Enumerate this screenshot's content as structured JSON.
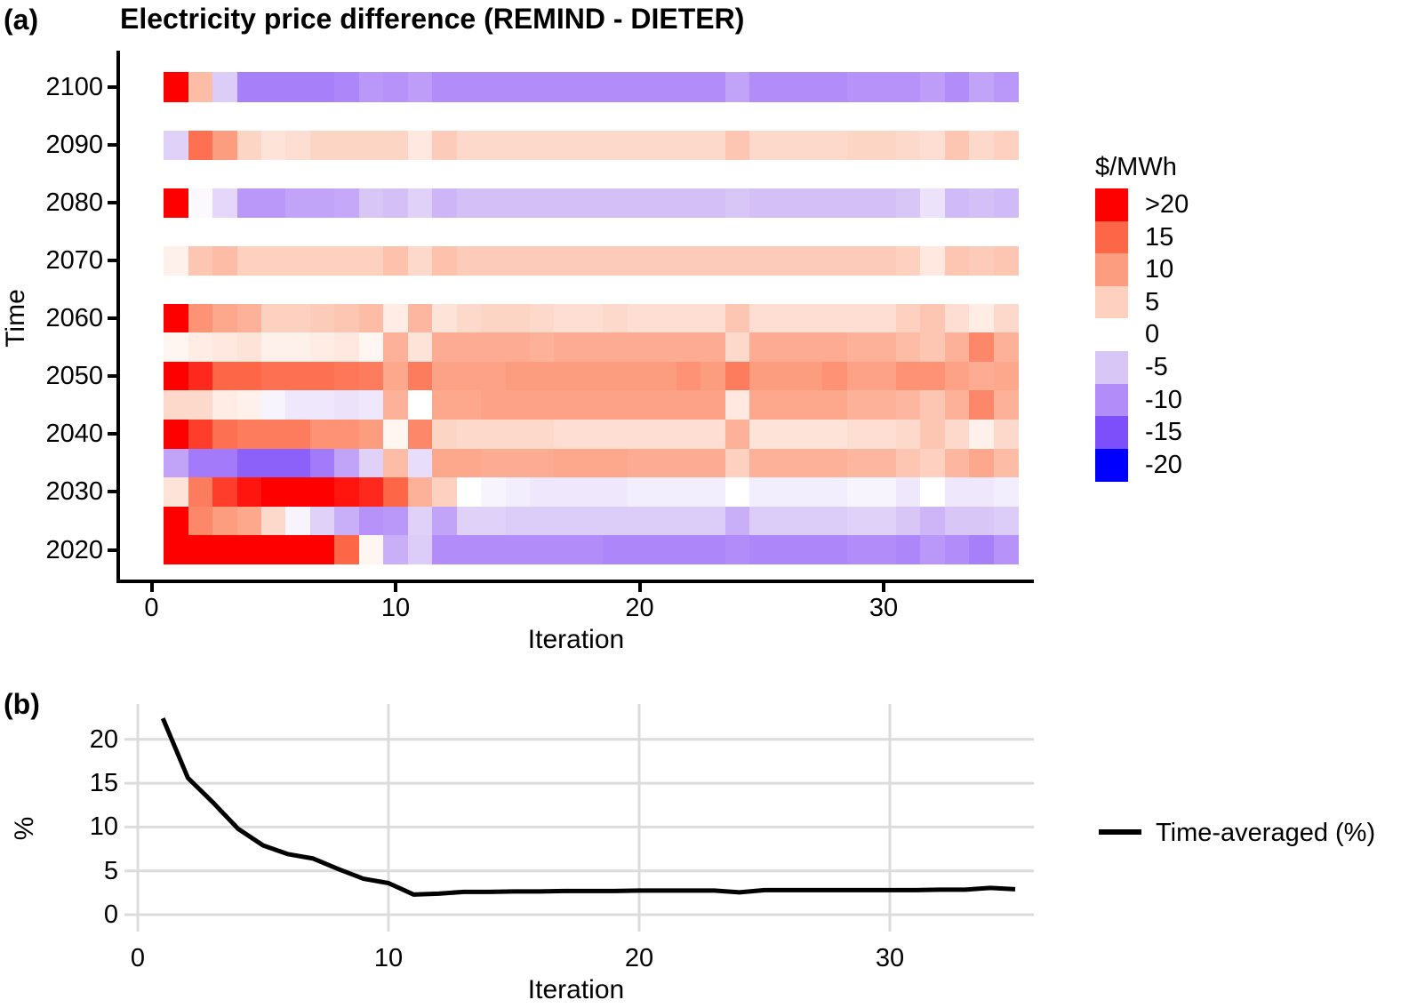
{
  "figure": {
    "panel_a_label": "(a)",
    "panel_b_label": "(b)"
  },
  "chart_data": [
    {
      "type": "heatmap",
      "title": "Electricity price difference (REMIND - DIETER)",
      "xlabel": "Iteration",
      "ylabel": "Time",
      "x_ticks": [
        0,
        10,
        20,
        30
      ],
      "y_ticks": [
        2020,
        2030,
        2040,
        2050,
        2060,
        2070,
        2080,
        2090,
        2100
      ],
      "xlim": [
        0,
        36
      ],
      "ylim": [
        2017.5,
        2102.5
      ],
      "iterations": [
        1,
        2,
        3,
        4,
        5,
        6,
        7,
        8,
        9,
        10,
        11,
        12,
        13,
        14,
        15,
        16,
        17,
        18,
        19,
        20,
        21,
        22,
        23,
        24,
        25,
        26,
        27,
        28,
        29,
        30,
        31,
        32,
        33,
        34,
        35
      ],
      "unit": "$/MWh",
      "grid": false,
      "legend_position": "right",
      "color_stops": [
        {
          "value": -20,
          "color": "#0000FF"
        },
        {
          "value": -15,
          "color": "#7C4FFB"
        },
        {
          "value": -10,
          "color": "#B28CF9"
        },
        {
          "value": -5,
          "color": "#D8C6F7"
        },
        {
          "value": 0,
          "color": "#FFFFFF"
        },
        {
          "value": 5,
          "color": "#FDD0BF"
        },
        {
          "value": 10,
          "color": "#FD9D80"
        },
        {
          "value": 15,
          "color": "#FD6647"
        },
        {
          "value": 20,
          "color": "#FF0000"
        }
      ],
      "legend": {
        "title": "$/MWh",
        "entries": [
          {
            "label": ">20",
            "color": "#FF0000"
          },
          {
            "label": "15",
            "color": "#FD6647"
          },
          {
            "label": "10",
            "color": "#FD9D80"
          },
          {
            "label": "5",
            "color": "#FDD0BF"
          },
          {
            "label": "0",
            "color": "#FFFFFF"
          },
          {
            "label": "-5",
            "color": "#D8C6F7"
          },
          {
            "label": "-10",
            "color": "#B28CF9"
          },
          {
            "label": "-15",
            "color": "#7C4FFB"
          },
          {
            "label": "-20",
            "color": "#0000FF"
          }
        ]
      },
      "rows": [
        {
          "year": 2100,
          "values": [
            25,
            7,
            -4.5,
            -11,
            -11,
            -11,
            -11,
            -10.5,
            -9,
            -9.5,
            -8.5,
            -10,
            -10,
            -10,
            -10,
            -10,
            -10,
            -10,
            -10,
            -10,
            -10,
            -10,
            -10,
            -8,
            -10,
            -10,
            -10,
            -10,
            -9.5,
            -9.5,
            -9.5,
            -8.5,
            -10,
            -8,
            -9
          ]
        },
        {
          "year": 2090,
          "values": [
            -4,
            14,
            10,
            4.5,
            3,
            3.5,
            4.5,
            4.5,
            4.5,
            4.5,
            2.5,
            5.5,
            4,
            4,
            4,
            4,
            4,
            4,
            4,
            4,
            4,
            4,
            4,
            6,
            4,
            4,
            4,
            4,
            4.5,
            4.5,
            4,
            3.5,
            6,
            4,
            5
          ]
        },
        {
          "year": 2080,
          "values": [
            25,
            -0.5,
            -3.5,
            -9,
            -9,
            -8,
            -8,
            -7.5,
            -5,
            -5.5,
            -4,
            -6.5,
            -5.5,
            -5.5,
            -5.5,
            -5.5,
            -5.5,
            -5.5,
            -5.5,
            -5.5,
            -5.5,
            -5.5,
            -5.5,
            -5,
            -5.5,
            -5.5,
            -5.5,
            -5.5,
            -5.5,
            -5.5,
            -5,
            -2.5,
            -6,
            -5.5,
            -6
          ]
        },
        {
          "year": 2070,
          "values": [
            1.5,
            6,
            7,
            5,
            5,
            5,
            5,
            5,
            5,
            6.5,
            4,
            6.5,
            5.5,
            5.5,
            5.5,
            5.5,
            5.5,
            5.5,
            5.5,
            5.5,
            5.5,
            5.5,
            5.5,
            5.5,
            5.5,
            5.5,
            5.5,
            5.5,
            5.5,
            5.5,
            5,
            2.5,
            6,
            5.5,
            6
          ]
        },
        {
          "year": 2060,
          "values": [
            25,
            11,
            9,
            8,
            5,
            5,
            5.5,
            6,
            7,
            2,
            7.5,
            3,
            4,
            4.5,
            4.5,
            4,
            3.5,
            3.5,
            4,
            3.5,
            3.5,
            3.5,
            3.5,
            6,
            3.5,
            3.5,
            3.5,
            3.5,
            3.5,
            3.5,
            5,
            6,
            3.5,
            2,
            4
          ]
        },
        {
          "year": 2055,
          "values": [
            1,
            2,
            2.5,
            3,
            1.5,
            1.5,
            2,
            2.5,
            1,
            8,
            3,
            8.5,
            8.5,
            8.5,
            8.5,
            8,
            8.5,
            8.5,
            8.5,
            8.5,
            8.5,
            8.5,
            8.5,
            4,
            8.5,
            8.5,
            8.5,
            8.5,
            8,
            8,
            7,
            6,
            8,
            12,
            8
          ]
        },
        {
          "year": 2050,
          "values": [
            25,
            18,
            15,
            15,
            14,
            14,
            14,
            13.5,
            13,
            9,
            13,
            9.5,
            9.5,
            9.5,
            10,
            10,
            10,
            10,
            10,
            10,
            10,
            11,
            10,
            13,
            10,
            10,
            10,
            11,
            9.5,
            9.5,
            11,
            11,
            9.5,
            8.5,
            9
          ]
        },
        {
          "year": 2045,
          "values": [
            4,
            4,
            2,
            1.5,
            -1,
            -2,
            -2,
            -2.5,
            -2,
            8,
            0,
            9,
            9,
            9.5,
            9.5,
            9.5,
            9.5,
            9.5,
            9.5,
            9.5,
            9.5,
            9.5,
            9.5,
            2.5,
            9,
            9,
            9,
            9,
            8,
            8,
            7.5,
            6,
            8,
            12,
            8
          ]
        },
        {
          "year": 2040,
          "values": [
            25,
            17,
            14,
            13,
            13,
            13,
            11,
            11,
            10,
            1,
            12,
            4.5,
            4,
            4,
            4,
            4,
            3.5,
            3.5,
            3.5,
            3.5,
            3.5,
            3.5,
            3.5,
            8,
            3,
            3,
            3,
            3,
            3.5,
            3.5,
            4,
            6,
            4,
            1.5,
            4
          ]
        },
        {
          "year": 2035,
          "values": [
            -8,
            -11.5,
            -11.5,
            -13.5,
            -13.5,
            -13.5,
            -11.5,
            -8,
            -4,
            7,
            -3,
            9,
            9,
            8.5,
            8.5,
            8.5,
            9,
            9,
            9,
            8.5,
            8.5,
            8.5,
            8.5,
            5,
            8,
            8,
            8,
            8,
            7.5,
            7.5,
            6,
            5,
            7.5,
            9,
            7
          ]
        },
        {
          "year": 2030,
          "values": [
            3,
            13,
            17,
            19,
            20,
            25,
            25,
            19,
            18,
            15,
            8,
            5,
            0,
            -1,
            -1.5,
            -2,
            -2,
            -2,
            -2,
            -1.5,
            -1.5,
            -1.5,
            -1.5,
            0,
            -1.5,
            -1.5,
            -1.5,
            -1.5,
            -1,
            -1,
            -2,
            0,
            -2,
            -2,
            -1.5
          ]
        },
        {
          "year": 2025,
          "values": [
            25,
            12,
            10,
            9,
            4,
            -1,
            -4,
            -7,
            -9.5,
            -9,
            -4,
            -8,
            -4,
            -4,
            -4.5,
            -4.5,
            -4.5,
            -4.5,
            -4.5,
            -4.5,
            -4.5,
            -4.5,
            -4.5,
            -7,
            -4.5,
            -4.5,
            -4.5,
            -4.5,
            -4,
            -4,
            -5,
            -6.5,
            -5,
            -5,
            -4.5
          ]
        },
        {
          "year": 2020,
          "values": [
            25,
            25,
            25,
            25,
            25,
            25,
            25,
            15,
            1,
            -7,
            -4.5,
            -10,
            -10,
            -10,
            -10,
            -10,
            -10,
            -10,
            -10.5,
            -10.5,
            -10.5,
            -10.5,
            -10.5,
            -10,
            -10.5,
            -10.5,
            -10.5,
            -10.5,
            -10,
            -10,
            -10.5,
            -9,
            -10,
            -11,
            -9.5
          ]
        }
      ]
    },
    {
      "type": "line",
      "title": "",
      "xlabel": "Iteration",
      "ylabel": "%",
      "x_ticks": [
        0,
        10,
        20,
        30
      ],
      "y_ticks": [
        0,
        5,
        10,
        15,
        20
      ],
      "xlim": [
        0,
        36
      ],
      "ylim": [
        0,
        23
      ],
      "grid": true,
      "grid_color": "#DCDCDC",
      "line_color": "#000000",
      "legend_position": "right",
      "series": [
        {
          "name": "Time-averaged (%)",
          "x": [
            1,
            2,
            3,
            4,
            5,
            6,
            7,
            8,
            9,
            10,
            11,
            12,
            13,
            14,
            15,
            16,
            17,
            18,
            19,
            20,
            21,
            22,
            23,
            24,
            25,
            26,
            27,
            28,
            29,
            30,
            31,
            32,
            33,
            34,
            35
          ],
          "values": [
            22.4,
            15.6,
            12.8,
            9.8,
            7.9,
            6.9,
            6.4,
            5.2,
            4.1,
            3.6,
            2.3,
            2.4,
            2.6,
            2.6,
            2.65,
            2.65,
            2.7,
            2.7,
            2.7,
            2.75,
            2.75,
            2.75,
            2.75,
            2.55,
            2.8,
            2.8,
            2.8,
            2.8,
            2.8,
            2.8,
            2.8,
            2.85,
            2.85,
            3.05,
            2.9
          ]
        }
      ]
    }
  ]
}
